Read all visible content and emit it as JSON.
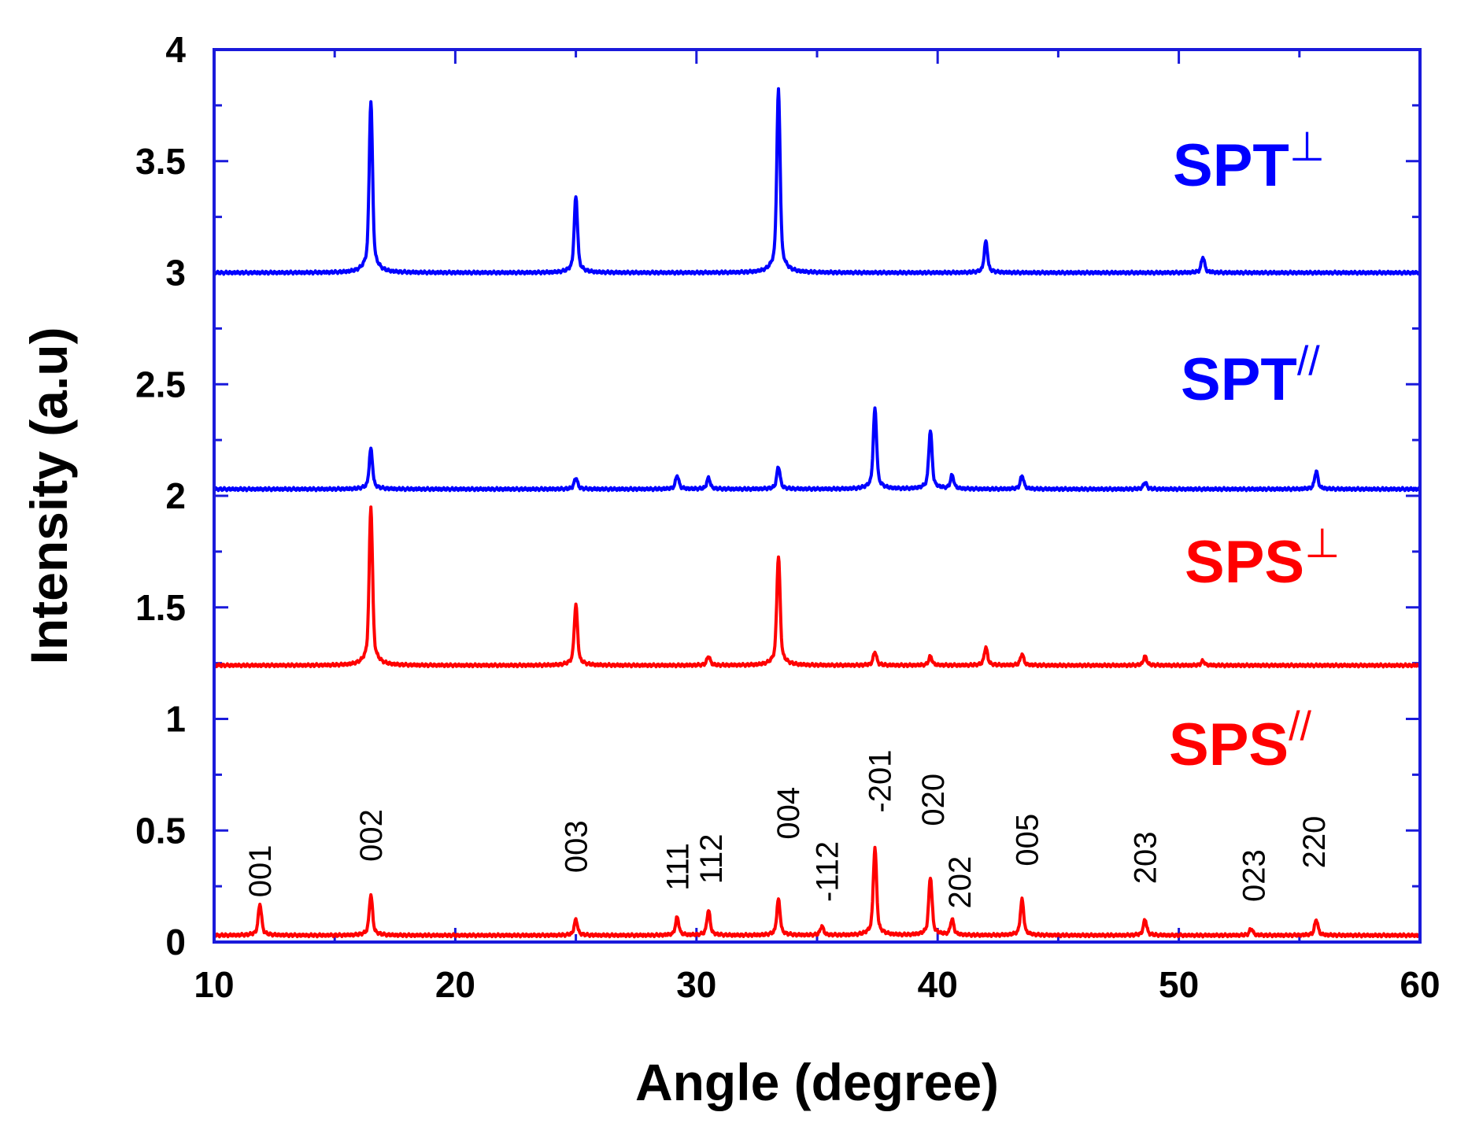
{
  "chart_data": {
    "type": "line",
    "title": "",
    "xlabel": "Angle (degree)",
    "ylabel": "Intensity (a.u)",
    "xlim": [
      10,
      60
    ],
    "ylim": [
      0,
      4
    ],
    "x_ticks": [
      "10",
      "20",
      "30",
      "40",
      "50",
      "60"
    ],
    "y_ticks": [
      "0",
      "0.5",
      "1",
      "1.5",
      "2",
      "2.5",
      "3",
      "3.5",
      "4"
    ],
    "grid": false,
    "series": [
      {
        "name": "SPT⊥",
        "label_main": "SPT",
        "label_sup": "⊥",
        "color": "#0000ff",
        "baseline": 3.0,
        "peaks": [
          {
            "x": 16.5,
            "y": 3.77
          },
          {
            "x": 25.0,
            "y": 3.34
          },
          {
            "x": 33.4,
            "y": 3.82
          },
          {
            "x": 42.0,
            "y": 3.14
          },
          {
            "x": 51.0,
            "y": 3.07
          }
        ]
      },
      {
        "name": "SPT//",
        "label_main": "SPT",
        "label_sup": "//",
        "color": "#0000ff",
        "baseline": 2.03,
        "peaks": [
          {
            "x": 16.5,
            "y": 2.21
          },
          {
            "x": 25.0,
            "y": 2.08
          },
          {
            "x": 29.2,
            "y": 2.09
          },
          {
            "x": 30.5,
            "y": 2.08
          },
          {
            "x": 33.4,
            "y": 2.13
          },
          {
            "x": 37.4,
            "y": 2.39
          },
          {
            "x": 39.7,
            "y": 2.29
          },
          {
            "x": 40.6,
            "y": 2.09
          },
          {
            "x": 43.5,
            "y": 2.09
          },
          {
            "x": 48.6,
            "y": 2.06
          },
          {
            "x": 55.7,
            "y": 2.11
          }
        ]
      },
      {
        "name": "SPS⊥",
        "label_main": "SPS",
        "label_sup": "⊥",
        "color": "#ff0000",
        "baseline": 1.24,
        "peaks": [
          {
            "x": 16.5,
            "y": 1.95
          },
          {
            "x": 25.0,
            "y": 1.51
          },
          {
            "x": 30.5,
            "y": 1.28
          },
          {
            "x": 33.4,
            "y": 1.73
          },
          {
            "x": 37.4,
            "y": 1.3
          },
          {
            "x": 39.7,
            "y": 1.28
          },
          {
            "x": 42.0,
            "y": 1.32
          },
          {
            "x": 43.5,
            "y": 1.29
          },
          {
            "x": 48.6,
            "y": 1.28
          },
          {
            "x": 51.0,
            "y": 1.26
          }
        ]
      },
      {
        "name": "SPS//",
        "label_main": "SPS",
        "label_sup": "//",
        "color": "#ff0000",
        "baseline": 0.03,
        "peaks": [
          {
            "x": 11.9,
            "y": 0.17
          },
          {
            "x": 16.5,
            "y": 0.21
          },
          {
            "x": 25.0,
            "y": 0.1
          },
          {
            "x": 29.2,
            "y": 0.11
          },
          {
            "x": 30.5,
            "y": 0.14
          },
          {
            "x": 33.4,
            "y": 0.19
          },
          {
            "x": 35.2,
            "y": 0.07
          },
          {
            "x": 37.4,
            "y": 0.42
          },
          {
            "x": 39.7,
            "y": 0.29
          },
          {
            "x": 40.6,
            "y": 0.1
          },
          {
            "x": 43.5,
            "y": 0.19
          },
          {
            "x": 48.6,
            "y": 0.1
          },
          {
            "x": 53.0,
            "y": 0.06
          },
          {
            "x": 55.7,
            "y": 0.1
          }
        ]
      }
    ],
    "annotations": [
      {
        "text": "001",
        "x": 11.9,
        "y": 0.2
      },
      {
        "text": "002",
        "x": 16.5,
        "y": 0.36
      },
      {
        "text": "003",
        "x": 25.0,
        "y": 0.31
      },
      {
        "text": "111",
        "x": 29.2,
        "y": 0.23
      },
      {
        "text": "112",
        "x": 30.6,
        "y": 0.26
      },
      {
        "text": "004",
        "x": 33.8,
        "y": 0.46
      },
      {
        "text": "-112",
        "x": 35.4,
        "y": 0.18
      },
      {
        "text": "-201",
        "x": 37.6,
        "y": 0.58
      },
      {
        "text": "020",
        "x": 39.8,
        "y": 0.52
      },
      {
        "text": "202",
        "x": 40.9,
        "y": 0.15
      },
      {
        "text": "005",
        "x": 43.7,
        "y": 0.34
      },
      {
        "text": "203",
        "x": 48.6,
        "y": 0.26
      },
      {
        "text": "023",
        "x": 53.1,
        "y": 0.18
      },
      {
        "text": "220",
        "x": 55.6,
        "y": 0.33
      }
    ]
  }
}
